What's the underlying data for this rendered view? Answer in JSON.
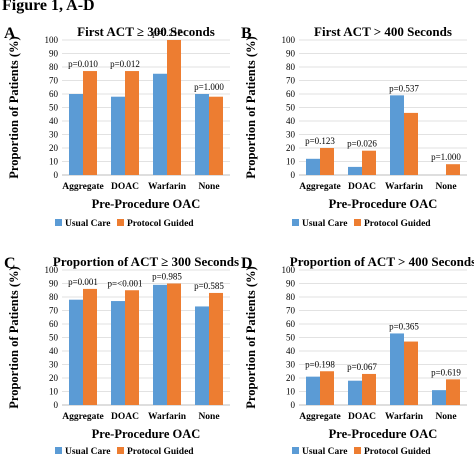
{
  "figure_title": "Figure 1, A-D",
  "colors": {
    "usual_care": "#5b9bd5",
    "protocol_guided": "#ed7d31"
  },
  "chart_data": [
    {
      "panel": "A",
      "type": "bar",
      "title": "First ACT ≥ 300 Seconds",
      "xlabel": "Pre-Procedure OAC",
      "ylabel": "Proportion of Patients (%)",
      "ylim": [
        0,
        100
      ],
      "yticks": [
        0,
        10,
        20,
        30,
        40,
        50,
        60,
        70,
        80,
        90,
        100
      ],
      "grid": true,
      "legend": "bottom",
      "categories": [
        "Aggregate",
        "DOAC",
        "Warfarin",
        "None"
      ],
      "series": [
        {
          "name": "Usual Care",
          "values": [
            60,
            58,
            75,
            60
          ]
        },
        {
          "name": "Protocol Guided",
          "values": [
            77,
            77,
            100,
            58
          ]
        }
      ],
      "p_values": [
        "p=0.010",
        "p=0.012",
        "p=0.217",
        "p=1.000"
      ]
    },
    {
      "panel": "B",
      "type": "bar",
      "title": "First ACT > 400 Seconds",
      "xlabel": "Pre-Procedure OAC",
      "ylabel": "Proportion of Patients (%)",
      "ylim": [
        0,
        100
      ],
      "yticks": [
        0,
        10,
        20,
        30,
        40,
        50,
        60,
        70,
        80,
        90,
        100
      ],
      "grid": true,
      "legend": "bottom",
      "categories": [
        "Aggregate",
        "DOAC",
        "Warfarin",
        "None"
      ],
      "series": [
        {
          "name": "Usual Care",
          "values": [
            12,
            6,
            59,
            0
          ]
        },
        {
          "name": "Protocol Guided",
          "values": [
            20,
            18,
            46,
            8
          ]
        }
      ],
      "p_values": [
        "p=0.123",
        "p=0.026",
        "p=0.537",
        "p=1.000"
      ]
    },
    {
      "panel": "C",
      "type": "bar",
      "title": "Proportion of ACT ≥ 300 Seconds",
      "xlabel": "Pre-Procedure OAC",
      "ylabel": "Proportion of Patients (%)",
      "ylim": [
        0,
        100
      ],
      "yticks": [
        0,
        10,
        20,
        30,
        40,
        50,
        60,
        70,
        80,
        90,
        100
      ],
      "grid": true,
      "legend": "bottom",
      "categories": [
        "Aggregate",
        "DOAC",
        "Warfarin",
        "None"
      ],
      "series": [
        {
          "name": "Usual Care",
          "values": [
            78,
            77,
            89,
            73
          ]
        },
        {
          "name": "Protocol Guided",
          "values": [
            86,
            85,
            90,
            83
          ]
        }
      ],
      "p_values": [
        "p=0.001",
        "p=<0.001",
        "p=0.985",
        "p=0.585"
      ]
    },
    {
      "panel": "D",
      "type": "bar",
      "title": "Proportion of ACT > 400 Seconds",
      "xlabel": "Pre-Procedure OAC",
      "ylabel": "Proportion of Patients (%)",
      "ylim": [
        0,
        100
      ],
      "yticks": [
        0,
        10,
        20,
        30,
        40,
        50,
        60,
        70,
        80,
        90,
        100
      ],
      "grid": true,
      "legend": "bottom",
      "categories": [
        "Aggregate",
        "DOAC",
        "Warfarin",
        "None"
      ],
      "series": [
        {
          "name": "Usual Care",
          "values": [
            21,
            18,
            53,
            11
          ]
        },
        {
          "name": "Protocol Guided",
          "values": [
            25,
            23,
            47,
            19
          ]
        }
      ],
      "p_values": [
        "p=0.198",
        "p=0.067",
        "p=0.365",
        "p=0.619"
      ]
    }
  ]
}
